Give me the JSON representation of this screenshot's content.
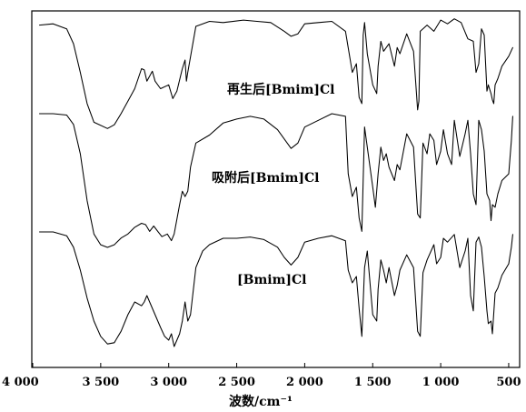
{
  "chart_data": {
    "type": "line",
    "title": "",
    "xlabel": "波数/cm⁻¹",
    "ylabel": "",
    "xlim": [
      4000,
      450
    ],
    "x_reversed": true,
    "grid": false,
    "xticks": [
      {
        "value": 4000,
        "label": "4 000"
      },
      {
        "value": 3500,
        "label": "3 500"
      },
      {
        "value": 3000,
        "label": "3 000"
      },
      {
        "value": 2500,
        "label": "2 500"
      },
      {
        "value": 2000,
        "label": "2 000"
      },
      {
        "value": 1500,
        "label": "1 500"
      },
      {
        "value": 1000,
        "label": "1 000"
      },
      {
        "value": 500,
        "label": "500"
      }
    ],
    "series": [
      {
        "name": "再生后[Bmim]Cl",
        "points": [
          [
            3950,
            0.93
          ],
          [
            3850,
            0.94
          ],
          [
            3750,
            0.9
          ],
          [
            3700,
            0.78
          ],
          [
            3650,
            0.55
          ],
          [
            3600,
            0.3
          ],
          [
            3550,
            0.15
          ],
          [
            3450,
            0.1
          ],
          [
            3400,
            0.13
          ],
          [
            3350,
            0.22
          ],
          [
            3300,
            0.32
          ],
          [
            3250,
            0.42
          ],
          [
            3200,
            0.58
          ],
          [
            3180,
            0.57
          ],
          [
            3160,
            0.48
          ],
          [
            3120,
            0.56
          ],
          [
            3100,
            0.48
          ],
          [
            3060,
            0.42
          ],
          [
            3000,
            0.45
          ],
          [
            2970,
            0.34
          ],
          [
            2940,
            0.4
          ],
          [
            2900,
            0.58
          ],
          [
            2880,
            0.65
          ],
          [
            2870,
            0.48
          ],
          [
            2860,
            0.55
          ],
          [
            2800,
            0.92
          ],
          [
            2700,
            0.96
          ],
          [
            2600,
            0.95
          ],
          [
            2450,
            0.97
          ],
          [
            2350,
            0.96
          ],
          [
            2250,
            0.95
          ],
          [
            2150,
            0.88
          ],
          [
            2100,
            0.84
          ],
          [
            2050,
            0.86
          ],
          [
            2000,
            0.94
          ],
          [
            1900,
            0.95
          ],
          [
            1800,
            0.96
          ],
          [
            1700,
            0.88
          ],
          [
            1650,
            0.55
          ],
          [
            1620,
            0.62
          ],
          [
            1600,
            0.35
          ],
          [
            1580,
            0.3
          ],
          [
            1570,
            0.85
          ],
          [
            1560,
            0.95
          ],
          [
            1540,
            0.7
          ],
          [
            1500,
            0.45
          ],
          [
            1470,
            0.38
          ],
          [
            1460,
            0.6
          ],
          [
            1440,
            0.8
          ],
          [
            1420,
            0.72
          ],
          [
            1380,
            0.78
          ],
          [
            1340,
            0.6
          ],
          [
            1320,
            0.75
          ],
          [
            1300,
            0.7
          ],
          [
            1250,
            0.86
          ],
          [
            1200,
            0.72
          ],
          [
            1170,
            0.25
          ],
          [
            1160,
            0.32
          ],
          [
            1150,
            0.88
          ],
          [
            1100,
            0.93
          ],
          [
            1050,
            0.88
          ],
          [
            1000,
            0.97
          ],
          [
            950,
            0.94
          ],
          [
            900,
            0.98
          ],
          [
            850,
            0.95
          ],
          [
            800,
            0.82
          ],
          [
            760,
            0.8
          ],
          [
            740,
            0.55
          ],
          [
            720,
            0.62
          ],
          [
            700,
            0.9
          ],
          [
            680,
            0.85
          ],
          [
            660,
            0.4
          ],
          [
            650,
            0.45
          ],
          [
            630,
            0.38
          ],
          [
            620,
            0.33
          ],
          [
            610,
            0.3
          ],
          [
            600,
            0.45
          ],
          [
            580,
            0.5
          ],
          [
            550,
            0.6
          ],
          [
            500,
            0.68
          ],
          [
            470,
            0.75
          ]
        ]
      },
      {
        "name": "吸附后[Bmim]Cl",
        "points": [
          [
            3950,
            1.0
          ],
          [
            3850,
            1.0
          ],
          [
            3750,
            0.99
          ],
          [
            3700,
            0.92
          ],
          [
            3650,
            0.7
          ],
          [
            3600,
            0.35
          ],
          [
            3550,
            0.1
          ],
          [
            3500,
            0.02
          ],
          [
            3450,
            0.0
          ],
          [
            3400,
            0.02
          ],
          [
            3350,
            0.07
          ],
          [
            3300,
            0.1
          ],
          [
            3250,
            0.15
          ],
          [
            3200,
            0.18
          ],
          [
            3170,
            0.17
          ],
          [
            3140,
            0.12
          ],
          [
            3110,
            0.16
          ],
          [
            3080,
            0.12
          ],
          [
            3050,
            0.08
          ],
          [
            3010,
            0.1
          ],
          [
            2980,
            0.05
          ],
          [
            2960,
            0.1
          ],
          [
            2920,
            0.32
          ],
          [
            2900,
            0.42
          ],
          [
            2880,
            0.38
          ],
          [
            2860,
            0.42
          ],
          [
            2840,
            0.6
          ],
          [
            2800,
            0.78
          ],
          [
            2700,
            0.84
          ],
          [
            2600,
            0.93
          ],
          [
            2500,
            0.96
          ],
          [
            2400,
            0.98
          ],
          [
            2300,
            0.96
          ],
          [
            2200,
            0.88
          ],
          [
            2100,
            0.74
          ],
          [
            2050,
            0.78
          ],
          [
            2000,
            0.9
          ],
          [
            1900,
            0.95
          ],
          [
            1800,
            1.0
          ],
          [
            1700,
            0.98
          ],
          [
            1680,
            0.55
          ],
          [
            1650,
            0.38
          ],
          [
            1620,
            0.45
          ],
          [
            1600,
            0.22
          ],
          [
            1580,
            0.12
          ],
          [
            1560,
            0.9
          ],
          [
            1540,
            0.75
          ],
          [
            1500,
            0.45
          ],
          [
            1480,
            0.3
          ],
          [
            1460,
            0.55
          ],
          [
            1440,
            0.75
          ],
          [
            1420,
            0.65
          ],
          [
            1400,
            0.7
          ],
          [
            1380,
            0.6
          ],
          [
            1340,
            0.5
          ],
          [
            1320,
            0.62
          ],
          [
            1300,
            0.58
          ],
          [
            1250,
            0.85
          ],
          [
            1200,
            0.75
          ],
          [
            1170,
            0.25
          ],
          [
            1150,
            0.22
          ],
          [
            1130,
            0.78
          ],
          [
            1100,
            0.7
          ],
          [
            1080,
            0.85
          ],
          [
            1050,
            0.8
          ],
          [
            1030,
            0.62
          ],
          [
            1000,
            0.72
          ],
          [
            980,
            0.88
          ],
          [
            950,
            0.7
          ],
          [
            920,
            0.62
          ],
          [
            900,
            0.95
          ],
          [
            860,
            0.68
          ],
          [
            820,
            0.85
          ],
          [
            800,
            0.95
          ],
          [
            780,
            0.7
          ],
          [
            760,
            0.4
          ],
          [
            740,
            0.32
          ],
          [
            720,
            0.95
          ],
          [
            700,
            0.88
          ],
          [
            680,
            0.72
          ],
          [
            660,
            0.4
          ],
          [
            640,
            0.35
          ],
          [
            630,
            0.2
          ],
          [
            620,
            0.32
          ],
          [
            600,
            0.3
          ],
          [
            580,
            0.4
          ],
          [
            550,
            0.5
          ],
          [
            500,
            0.55
          ],
          [
            480,
            0.8
          ],
          [
            470,
            0.98
          ]
        ]
      },
      {
        "name": "[Bmim]Cl",
        "points": [
          [
            3950,
            1.0
          ],
          [
            3850,
            1.0
          ],
          [
            3750,
            0.97
          ],
          [
            3700,
            0.88
          ],
          [
            3650,
            0.7
          ],
          [
            3600,
            0.48
          ],
          [
            3550,
            0.3
          ],
          [
            3500,
            0.18
          ],
          [
            3450,
            0.12
          ],
          [
            3400,
            0.13
          ],
          [
            3350,
            0.22
          ],
          [
            3300,
            0.35
          ],
          [
            3250,
            0.45
          ],
          [
            3200,
            0.42
          ],
          [
            3180,
            0.45
          ],
          [
            3160,
            0.5
          ],
          [
            3140,
            0.45
          ],
          [
            3100,
            0.35
          ],
          [
            3060,
            0.25
          ],
          [
            3030,
            0.18
          ],
          [
            3000,
            0.15
          ],
          [
            2980,
            0.2
          ],
          [
            2960,
            0.1
          ],
          [
            2940,
            0.15
          ],
          [
            2920,
            0.2
          ],
          [
            2900,
            0.3
          ],
          [
            2880,
            0.45
          ],
          [
            2860,
            0.3
          ],
          [
            2840,
            0.35
          ],
          [
            2800,
            0.72
          ],
          [
            2750,
            0.85
          ],
          [
            2700,
            0.9
          ],
          [
            2600,
            0.95
          ],
          [
            2500,
            0.95
          ],
          [
            2400,
            0.96
          ],
          [
            2300,
            0.94
          ],
          [
            2200,
            0.88
          ],
          [
            2150,
            0.8
          ],
          [
            2100,
            0.74
          ],
          [
            2050,
            0.8
          ],
          [
            2000,
            0.92
          ],
          [
            1900,
            0.95
          ],
          [
            1800,
            0.97
          ],
          [
            1700,
            0.93
          ],
          [
            1680,
            0.7
          ],
          [
            1650,
            0.6
          ],
          [
            1620,
            0.65
          ],
          [
            1600,
            0.4
          ],
          [
            1580,
            0.18
          ],
          [
            1560,
            0.72
          ],
          [
            1540,
            0.85
          ],
          [
            1520,
            0.6
          ],
          [
            1500,
            0.35
          ],
          [
            1470,
            0.3
          ],
          [
            1460,
            0.55
          ],
          [
            1440,
            0.78
          ],
          [
            1420,
            0.7
          ],
          [
            1400,
            0.6
          ],
          [
            1380,
            0.72
          ],
          [
            1340,
            0.5
          ],
          [
            1320,
            0.58
          ],
          [
            1300,
            0.7
          ],
          [
            1250,
            0.82
          ],
          [
            1200,
            0.72
          ],
          [
            1170,
            0.22
          ],
          [
            1150,
            0.18
          ],
          [
            1130,
            0.68
          ],
          [
            1100,
            0.78
          ],
          [
            1050,
            0.9
          ],
          [
            1030,
            0.75
          ],
          [
            1000,
            0.8
          ],
          [
            980,
            0.95
          ],
          [
            950,
            0.92
          ],
          [
            900,
            0.98
          ],
          [
            860,
            0.72
          ],
          [
            820,
            0.85
          ],
          [
            800,
            0.95
          ],
          [
            780,
            0.5
          ],
          [
            760,
            0.38
          ],
          [
            740,
            0.92
          ],
          [
            720,
            0.96
          ],
          [
            700,
            0.88
          ],
          [
            680,
            0.65
          ],
          [
            660,
            0.38
          ],
          [
            650,
            0.28
          ],
          [
            630,
            0.3
          ],
          [
            620,
            0.2
          ],
          [
            600,
            0.52
          ],
          [
            580,
            0.56
          ],
          [
            550,
            0.66
          ],
          [
            500,
            0.75
          ],
          [
            480,
            0.88
          ],
          [
            470,
            0.98
          ]
        ]
      }
    ]
  }
}
